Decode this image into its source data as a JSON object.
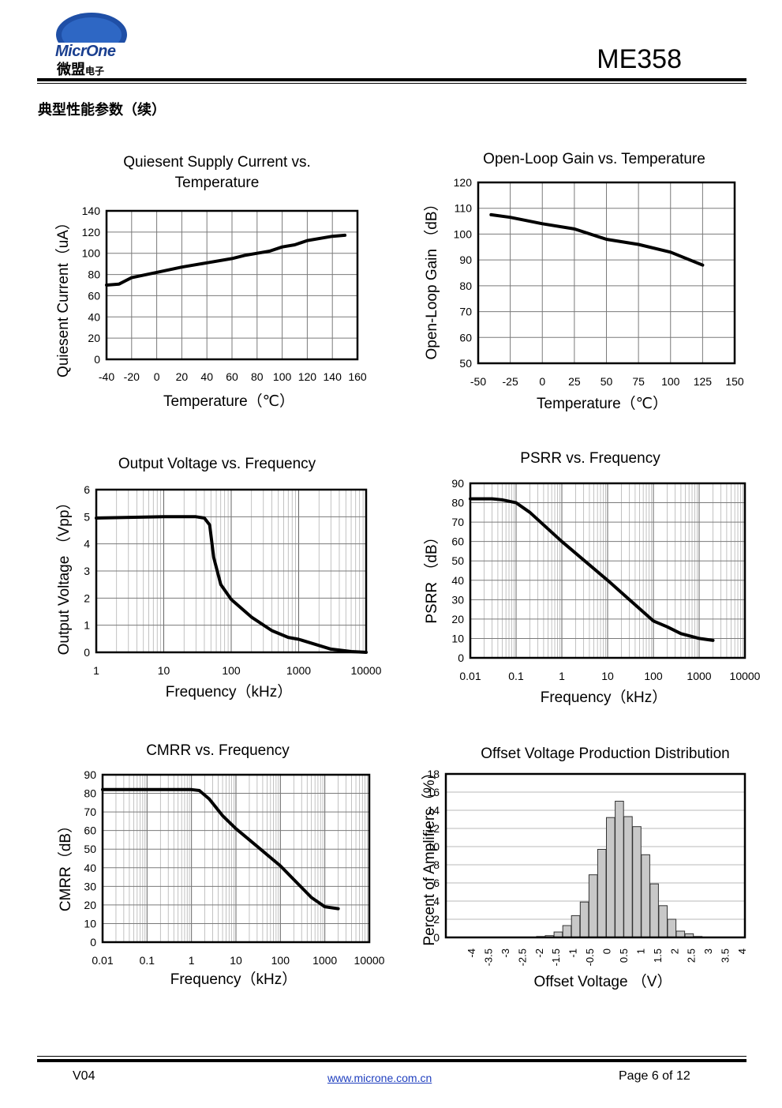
{
  "header": {
    "logo_text": "MicrOne",
    "logo_cn": "微盟",
    "logo_cn_small": "电子",
    "doc_title": "ME358"
  },
  "section_title": "典型性能参数（续）",
  "charts": [
    {
      "type": "line",
      "title": "Quiesent Supply Current vs.",
      "title2": "Temperature",
      "xlabel": "Temperature（℃）",
      "ylabel": "Quiesent Current（uA）",
      "xlim": [
        -40,
        160
      ],
      "ylim": [
        0,
        140
      ],
      "xticks": [
        "-40",
        "-20",
        "0",
        "20",
        "40",
        "60",
        "80",
        "100",
        "120",
        "140",
        "160"
      ],
      "yticks": [
        "0",
        "20",
        "40",
        "60",
        "80",
        "100",
        "120",
        "140"
      ],
      "x": [
        -40,
        -30,
        -25,
        -20,
        0,
        20,
        40,
        60,
        70,
        80,
        90,
        100,
        110,
        120,
        140,
        150
      ],
      "y": [
        70,
        71,
        74,
        77,
        82,
        87,
        91,
        95,
        98,
        100,
        102,
        106,
        108,
        112,
        116,
        117
      ]
    },
    {
      "type": "line",
      "title": "Open-Loop Gain vs. Temperature",
      "xlabel": "Temperature（℃）",
      "ylabel": "Open-Loop Gain （dB）",
      "xlim": [
        -50,
        150
      ],
      "ylim": [
        50,
        120
      ],
      "xticks": [
        "-50",
        "-25",
        "0",
        "25",
        "50",
        "75",
        "100",
        "125",
        "150"
      ],
      "yticks": [
        "50",
        "60",
        "70",
        "80",
        "90",
        "100",
        "110",
        "120"
      ],
      "x": [
        -40,
        -25,
        0,
        25,
        50,
        75,
        100,
        125
      ],
      "y": [
        107.5,
        106.5,
        104,
        102,
        98,
        96,
        93,
        88
      ]
    },
    {
      "type": "line",
      "title": "Output Voltage vs. Frequency",
      "xlabel": "Frequency（kHz）",
      "ylabel": "Output Voltage （Vpp）",
      "xscale": "log",
      "xlim": [
        1,
        10000
      ],
      "ylim": [
        0,
        6
      ],
      "xticks": [
        "1",
        "10",
        "100",
        "1000",
        "10000"
      ],
      "yticks": [
        "0",
        "1",
        "2",
        "3",
        "4",
        "5",
        "6"
      ],
      "x": [
        1,
        10,
        30,
        40,
        48,
        55,
        70,
        100,
        200,
        400,
        700,
        1000,
        3000,
        6000,
        10000
      ],
      "y": [
        4.95,
        5.0,
        5.0,
        4.95,
        4.7,
        3.5,
        2.5,
        1.95,
        1.3,
        0.8,
        0.55,
        0.48,
        0.12,
        0.03,
        0.0
      ]
    },
    {
      "type": "line",
      "title": "PSRR vs. Frequency",
      "xlabel": "Frequency（kHz）",
      "ylabel": "PSRR （dB）",
      "xscale": "log",
      "xlim": [
        0.01,
        10000
      ],
      "ylim": [
        0,
        90
      ],
      "xticks": [
        "0.01",
        "0.1",
        "1",
        "10",
        "100",
        "1000",
        "10000"
      ],
      "yticks": [
        "0",
        "10",
        "20",
        "30",
        "40",
        "50",
        "60",
        "70",
        "80",
        "90"
      ],
      "x": [
        0.01,
        0.03,
        0.05,
        0.1,
        0.2,
        1,
        10,
        100,
        200,
        400,
        1000,
        2000
      ],
      "y": [
        82,
        82,
        81.5,
        80,
        75,
        60,
        40,
        19,
        16,
        12.5,
        10,
        9
      ]
    },
    {
      "type": "line",
      "title": "CMRR vs. Frequency",
      "xlabel": "Frequency（kHz）",
      "ylabel": "CMRR（dB）",
      "xscale": "log",
      "xlim": [
        0.01,
        10000
      ],
      "ylim": [
        0,
        90
      ],
      "xticks": [
        "0.01",
        "0.1",
        "1",
        "10",
        "100",
        "1000",
        "10000"
      ],
      "yticks": [
        "0",
        "10",
        "20",
        "30",
        "40",
        "50",
        "60",
        "70",
        "80",
        "90"
      ],
      "x": [
        0.01,
        0.1,
        1,
        1.5,
        2.5,
        5,
        10,
        20,
        100,
        500,
        1000,
        2000
      ],
      "y": [
        82,
        82,
        82,
        81.5,
        77,
        68,
        61,
        55,
        41,
        24,
        19,
        18
      ]
    },
    {
      "type": "bar",
      "title": "Offset Voltage Production Distribution",
      "xlabel": "Offset Voltage （V）",
      "ylabel": "Percent of Amplifiers（%）",
      "ylim": [
        0,
        18
      ],
      "yticks": [
        "0",
        "2",
        "4",
        "6",
        "8",
        "10",
        "12",
        "14",
        "16",
        "18"
      ],
      "xticks": [
        "-4",
        "-3.5",
        "-3",
        "-2.5",
        "-2",
        "-1.5",
        "-1",
        "-0.5",
        "0",
        "0.5",
        "1",
        "1.5",
        "2",
        "2.5",
        "3",
        "3.5",
        "4"
      ],
      "bins": [
        -4,
        4
      ],
      "values": [
        0,
        0,
        0,
        0,
        0,
        0,
        0,
        0,
        0.1,
        0.2,
        0.6,
        1.3,
        2.4,
        3.9,
        6.9,
        9.7,
        13.2,
        15.0,
        13.3,
        12.2,
        9.1,
        5.9,
        3.5,
        2.0,
        0.7,
        0.4,
        0.1,
        0,
        0,
        0,
        0,
        0
      ]
    }
  ],
  "footer": {
    "version": "V04",
    "url": "www.microne.com.cn",
    "page": "Page 6 of 12"
  }
}
